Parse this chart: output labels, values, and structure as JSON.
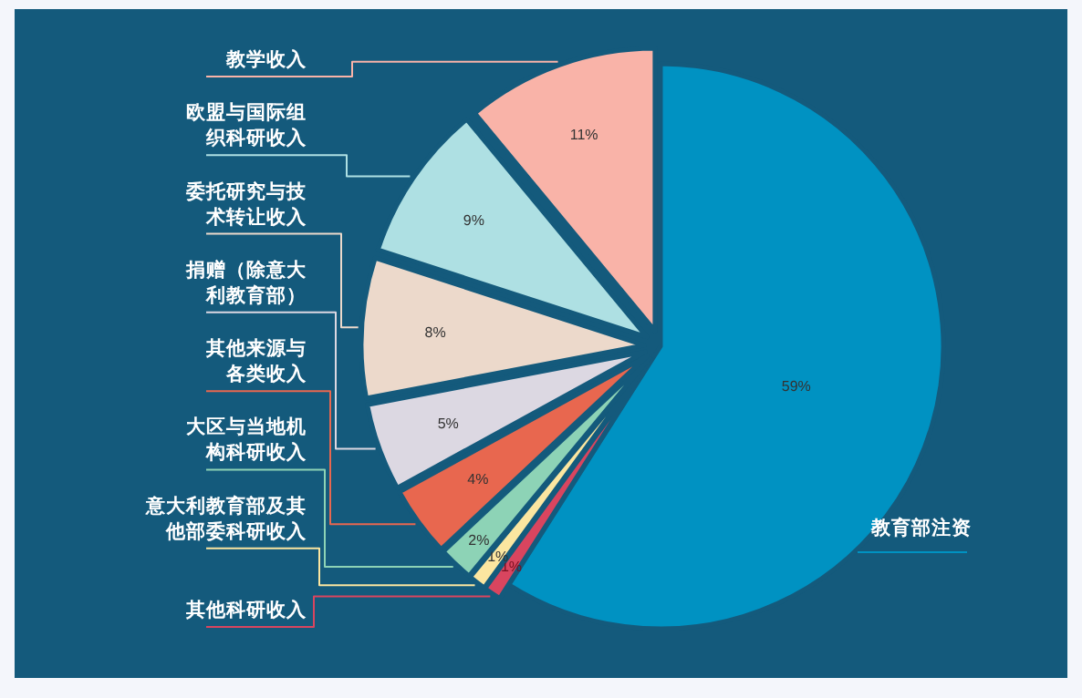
{
  "chart_data": {
    "type": "pie",
    "categories": [
      "教育部注资",
      "其他科研收入",
      "意大利教育部及其他部委科研收入",
      "大区与当地机构科研收入",
      "其他来源与各类收入",
      "捐赠（除意大利教育部）",
      "委托研究与技术转让收入",
      "欧盟与国际组织科研收入",
      "教学收入"
    ],
    "values": [
      59,
      1,
      1,
      2,
      4,
      5,
      8,
      9,
      11
    ],
    "value_labels": [
      "59%",
      "1%",
      "1%",
      "2%",
      "4%",
      "5%",
      "8%",
      "9%",
      "11%"
    ],
    "colors": [
      "#0092c2",
      "#d9455f",
      "#fbe6a0",
      "#8dd3b6",
      "#e8674f",
      "#dcd8e2",
      "#ecd9cb",
      "#aee0e3",
      "#f9b3a8"
    ]
  }
}
